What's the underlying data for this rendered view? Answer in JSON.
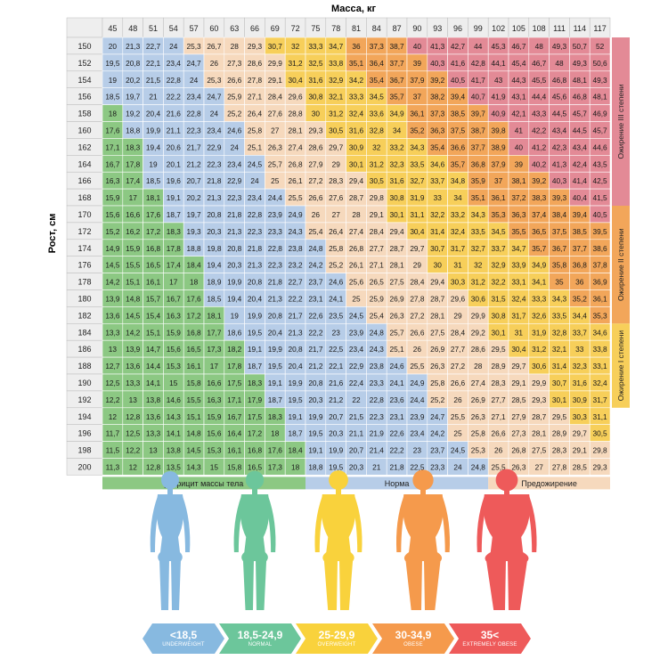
{
  "chart_data": {
    "type": "heatmap",
    "title": "",
    "xlabel": "Масса, кг",
    "ylabel": "Рост, см",
    "x": [
      "45",
      "48",
      "51",
      "54",
      "57",
      "60",
      "63",
      "66",
      "69",
      "72",
      "75",
      "78",
      "81",
      "84",
      "87",
      "90",
      "93",
      "96",
      "99",
      "102",
      "105",
      "108",
      "111",
      "114",
      "117"
    ],
    "y": [
      "150",
      "152",
      "154",
      "156",
      "158",
      "160",
      "162",
      "164",
      "166",
      "168",
      "170",
      "172",
      "174",
      "176",
      "178",
      "180",
      "182",
      "184",
      "186",
      "188",
      "190",
      "192",
      "194",
      "196",
      "198",
      "200"
    ],
    "values": [
      [
        20,
        21.3,
        22.7,
        24,
        25.3,
        26.7,
        28,
        29.3,
        30.7,
        32,
        33.3,
        34.7,
        36,
        37.3,
        38.7,
        40,
        41.3,
        42.7,
        44,
        45.3,
        46.7,
        48,
        49.3,
        50.7,
        52
      ],
      [
        19.5,
        20.8,
        22.1,
        23.4,
        24.7,
        26,
        27.3,
        28.6,
        29.9,
        31.2,
        32.5,
        33.8,
        35.1,
        36.4,
        37.7,
        39,
        40.3,
        41.6,
        42.8,
        44.1,
        45.4,
        46.7,
        48,
        49.3,
        50.6
      ],
      [
        19,
        20.2,
        21.5,
        22.8,
        24,
        25.3,
        26.6,
        27.8,
        29.1,
        30.4,
        31.6,
        32.9,
        34.2,
        35.4,
        36.7,
        37.9,
        39.2,
        40.5,
        41.7,
        43,
        44.3,
        45.5,
        46.8,
        48.1,
        49.3
      ],
      [
        18.5,
        19.7,
        21,
        22.2,
        23.4,
        24.7,
        25.9,
        27.1,
        28.4,
        29.6,
        30.8,
        32.1,
        33.3,
        34.5,
        35.7,
        37,
        38.2,
        39.4,
        40.7,
        41.9,
        43.1,
        44.4,
        45.6,
        46.8,
        48.1
      ],
      [
        18,
        19.2,
        20.4,
        21.6,
        22.8,
        24,
        25.2,
        26.4,
        27.6,
        28.8,
        30,
        31.2,
        32.4,
        33.6,
        34.9,
        36.1,
        37.3,
        38.5,
        39.7,
        40.9,
        42.1,
        43.3,
        44.5,
        45.7,
        46.9
      ],
      [
        17.6,
        18.8,
        19.9,
        21.1,
        22.3,
        23.4,
        24.6,
        25.8,
        27,
        28.1,
        29.3,
        30.5,
        31.6,
        32.8,
        34,
        35.2,
        36.3,
        37.5,
        38.7,
        39.8,
        41,
        42.2,
        43.4,
        44.5,
        45.7
      ],
      [
        17.1,
        18.3,
        19.4,
        20.6,
        21.7,
        22.9,
        24,
        25.1,
        26.3,
        27.4,
        28.6,
        29.7,
        30.9,
        32,
        33.2,
        34.3,
        35.4,
        36.6,
        37.7,
        38.9,
        40,
        41.2,
        42.3,
        43.4,
        44.6
      ],
      [
        16.7,
        17.8,
        19,
        20.1,
        21.2,
        22.3,
        23.4,
        24.5,
        25.7,
        26.8,
        27.9,
        29,
        30.1,
        31.2,
        32.3,
        33.5,
        34.6,
        35.7,
        36.8,
        37.9,
        39,
        40.2,
        41.3,
        42.4,
        43.5
      ],
      [
        16.3,
        17.4,
        18.5,
        19.6,
        20.7,
        21.8,
        22.9,
        24,
        25,
        26.1,
        27.2,
        28.3,
        29.4,
        30.5,
        31.6,
        32.7,
        33.7,
        34.8,
        35.9,
        37,
        38.1,
        39.2,
        40.3,
        41.4,
        42.5
      ],
      [
        15.9,
        17,
        18.1,
        19.1,
        20.2,
        21.3,
        22.3,
        23.4,
        24.4,
        25.5,
        26.6,
        27.6,
        28.7,
        29.8,
        30.8,
        31.9,
        33,
        34,
        35.1,
        36.1,
        37.2,
        38.3,
        39.3,
        40.4,
        41.5
      ],
      [
        15.6,
        16.6,
        17.6,
        18.7,
        19.7,
        20.8,
        21.8,
        22.8,
        23.9,
        24.9,
        26,
        27,
        28,
        29.1,
        30.1,
        31.1,
        32.2,
        33.2,
        34.3,
        35.3,
        36.3,
        37.4,
        38.4,
        39.4,
        40.5
      ],
      [
        15.2,
        16.2,
        17.2,
        18.3,
        19.3,
        20.3,
        21.3,
        22.3,
        23.3,
        24.3,
        25.4,
        26.4,
        27.4,
        28.4,
        29.4,
        30.4,
        31.4,
        32.4,
        33.5,
        34.5,
        35.5,
        36.5,
        37.5,
        38.5,
        39.5
      ],
      [
        14.9,
        15.9,
        16.8,
        17.8,
        18.8,
        19.8,
        20.8,
        21.8,
        22.8,
        23.8,
        24.8,
        25.8,
        26.8,
        27.7,
        28.7,
        29.7,
        30.7,
        31.7,
        32.7,
        33.7,
        34.7,
        35.7,
        36.7,
        37.7,
        38.6
      ],
      [
        14.5,
        15.5,
        16.5,
        17.4,
        18.4,
        19.4,
        20.3,
        21.3,
        22.3,
        23.2,
        24.2,
        25.2,
        26.1,
        27.1,
        28.1,
        29,
        30,
        31,
        32,
        32.9,
        33.9,
        34.9,
        35.8,
        36.8,
        37.8
      ],
      [
        14.2,
        15.1,
        16.1,
        17,
        18,
        18.9,
        19.9,
        20.8,
        21.8,
        22.7,
        23.7,
        24.6,
        25.6,
        26.5,
        27.5,
        28.4,
        29.4,
        30.3,
        31.2,
        32.2,
        33.1,
        34.1,
        35,
        36,
        36.9
      ],
      [
        13.9,
        14.8,
        15.7,
        16.7,
        17.6,
        18.5,
        19.4,
        20.4,
        21.3,
        22.2,
        23.1,
        24.1,
        25,
        25.9,
        26.9,
        27.8,
        28.7,
        29.6,
        30.6,
        31.5,
        32.4,
        33.3,
        34.3,
        35.2,
        36.1
      ],
      [
        13.6,
        14.5,
        15.4,
        16.3,
        17.2,
        18.1,
        19,
        19.9,
        20.8,
        21.7,
        22.6,
        23.5,
        24.5,
        25.4,
        26.3,
        27.2,
        28.1,
        29,
        29.9,
        30.8,
        31.7,
        32.6,
        33.5,
        34.4,
        35.3
      ],
      [
        13.3,
        14.2,
        15.1,
        15.9,
        16.8,
        17.7,
        18.6,
        19.5,
        20.4,
        21.3,
        22.2,
        23,
        23.9,
        24.8,
        25.7,
        26.6,
        27.5,
        28.4,
        29.2,
        30.1,
        31,
        31.9,
        32.8,
        33.7,
        34.6
      ],
      [
        13,
        13.9,
        14.7,
        15.6,
        16.5,
        17.3,
        18.2,
        19.1,
        19.9,
        20.8,
        21.7,
        22.5,
        23.4,
        24.3,
        25.1,
        26,
        26.9,
        27.7,
        28.6,
        29.5,
        30.4,
        31.2,
        32.1,
        33,
        33.8
      ],
      [
        12.7,
        13.6,
        14.4,
        15.3,
        16.1,
        17,
        17.8,
        18.7,
        19.5,
        20.4,
        21.2,
        22.1,
        22.9,
        23.8,
        24.6,
        25.5,
        26.3,
        27.2,
        28,
        28.9,
        29.7,
        30.6,
        31.4,
        32.3,
        33.1
      ],
      [
        12.5,
        13.3,
        14.1,
        15,
        15.8,
        16.6,
        17.5,
        18.3,
        19.1,
        19.9,
        20.8,
        21.6,
        22.4,
        23.3,
        24.1,
        24.9,
        25.8,
        26.6,
        27.4,
        28.3,
        29.1,
        29.9,
        30.7,
        31.6,
        32.4
      ],
      [
        12.2,
        13,
        13.8,
        14.6,
        15.5,
        16.3,
        17.1,
        17.9,
        18.7,
        19.5,
        20.3,
        21.2,
        22,
        22.8,
        23.6,
        24.4,
        25.2,
        26,
        26.9,
        27.7,
        28.5,
        29.3,
        30.1,
        30.9,
        31.7
      ],
      [
        12,
        12.8,
        13.6,
        14.3,
        15.1,
        15.9,
        16.7,
        17.5,
        18.3,
        19.1,
        19.9,
        20.7,
        21.5,
        22.3,
        23.1,
        23.9,
        24.7,
        25.5,
        26.3,
        27.1,
        27.9,
        28.7,
        29.5,
        30.3,
        31.1
      ],
      [
        11.7,
        12.5,
        13.3,
        14.1,
        14.8,
        15.6,
        16.4,
        17.2,
        18,
        18.7,
        19.5,
        20.3,
        21.1,
        21.9,
        22.6,
        23.4,
        24.2,
        25,
        25.8,
        26.6,
        27.3,
        28.1,
        28.9,
        29.7,
        30.5
      ],
      [
        11.5,
        12.2,
        13,
        13.8,
        14.5,
        15.3,
        16.1,
        16.8,
        17.6,
        18.4,
        19.1,
        19.9,
        20.7,
        21.4,
        22.2,
        23,
        23.7,
        24.5,
        25.3,
        26,
        26.8,
        27.5,
        28.3,
        29.1,
        29.8
      ],
      [
        11.3,
        12,
        12.8,
        13.5,
        14.3,
        15,
        15.8,
        16.5,
        17.3,
        18,
        18.8,
        19.5,
        20.3,
        21,
        21.8,
        22.5,
        23.3,
        24,
        24.8,
        25.5,
        26.3,
        27,
        27.8,
        28.5,
        29.3
      ]
    ],
    "bottom_categories": [
      {
        "label": "Дефицит массы тела",
        "color": "#8cc883"
      },
      {
        "label": "Норма",
        "color": "#b7cde8"
      },
      {
        "label": "Предожирение",
        "color": "#f6d9bd"
      }
    ],
    "side_categories": [
      {
        "label": "Ожирение III степени",
        "color": "#e38a96"
      },
      {
        "label": "Ожирение II степени",
        "color": "#f2a65a"
      },
      {
        "label": "Ожирение I степени",
        "color": "#f7cf5a"
      }
    ],
    "colors": {
      "deficit": "#8cc883",
      "normal": "#b7cde8",
      "preobese": "#f6d9bd",
      "obese1": "#f7cf5a",
      "obese2": "#f2a65a",
      "obese3": "#e38a96",
      "header": "#eeeeee"
    },
    "legend": [
      {
        "range": "<18,5",
        "caption": "UNDERWEIGHT",
        "color": "#87b9e0"
      },
      {
        "range": "18,5-24,9",
        "caption": "NORMAL",
        "color": "#6cc69b"
      },
      {
        "range": "25-29,9",
        "caption": "OVERWEIGHT",
        "color": "#f9d23c"
      },
      {
        "range": "30-34,9",
        "caption": "OBESE",
        "color": "#f59a4c"
      },
      {
        "range": "35<",
        "caption": "EXTREMELY OBESE",
        "color": "#ee5a5a"
      }
    ]
  }
}
